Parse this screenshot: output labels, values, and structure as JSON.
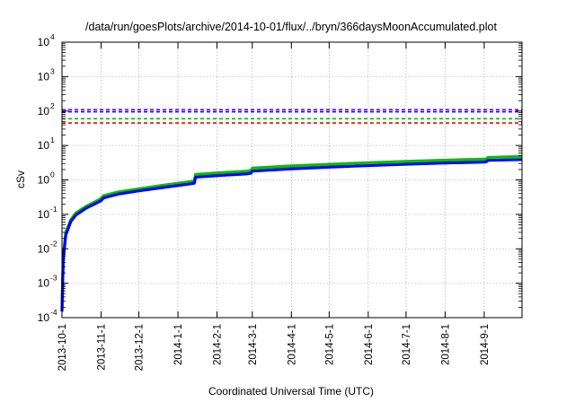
{
  "chart_data": {
    "type": "line",
    "title": "/data/run/goesPlots/archive/2014-10-01/flux/../bryn/366daysMoonAccumulated.plot",
    "xlabel": "Coordinated Universal Time (UTC)",
    "ylabel": "cSv",
    "x_ticks": [
      "2013-10-1",
      "2013-11-1",
      "2013-12-1",
      "2014-1-1",
      "2014-2-1",
      "2014-3-1",
      "2014-4-1",
      "2014-5-1",
      "2014-6-1",
      "2014-7-1",
      "2014-8-1",
      "2014-9-1"
    ],
    "x_range": [
      "2013-10-1",
      "2014-10-1"
    ],
    "y_scale": "log",
    "ylim": [
      0.0001,
      10000
    ],
    "y_ticks": [
      {
        "base": "10",
        "exp": "-4"
      },
      {
        "base": "10",
        "exp": "-3"
      },
      {
        "base": "10",
        "exp": "-2"
      },
      {
        "base": "10",
        "exp": "-1"
      },
      {
        "base": "10",
        "exp": "0"
      },
      {
        "base": "10",
        "exp": "1"
      },
      {
        "base": "10",
        "exp": "2"
      },
      {
        "base": "10",
        "exp": "3"
      },
      {
        "base": "10",
        "exp": "4"
      }
    ],
    "grid": true,
    "thresholds": [
      {
        "value": 110,
        "color": "#9400d3"
      },
      {
        "value": 95,
        "color": "#0000ff"
      },
      {
        "value": 60,
        "color": "#00c000"
      },
      {
        "value": 45,
        "color": "#ff0000"
      }
    ],
    "series": [
      {
        "color": "#00c000",
        "points": [
          [
            "2013-10-1",
            0.00018
          ],
          [
            "2013-10-2",
            0.006
          ],
          [
            "2013-10-4",
            0.03
          ],
          [
            "2013-10-8",
            0.07
          ],
          [
            "2013-10-12",
            0.11
          ],
          [
            "2013-10-20",
            0.17
          ],
          [
            "2013-10-28",
            0.24
          ],
          [
            "2013-11-1",
            0.29
          ],
          [
            "2013-11-3",
            0.35
          ],
          [
            "2013-11-15",
            0.45
          ],
          [
            "2013-12-1",
            0.55
          ],
          [
            "2013-12-20",
            0.7
          ],
          [
            "2014-1-10",
            0.88
          ],
          [
            "2014-1-14",
            0.93
          ],
          [
            "2014-1-15",
            1.45
          ],
          [
            "2014-2-1",
            1.6
          ],
          [
            "2014-2-25",
            1.8
          ],
          [
            "2014-2-28",
            1.9
          ],
          [
            "2014-3-1",
            2.2
          ],
          [
            "2014-4-1",
            2.55
          ],
          [
            "2014-5-1",
            2.85
          ],
          [
            "2014-6-1",
            3.15
          ],
          [
            "2014-7-1",
            3.45
          ],
          [
            "2014-8-1",
            3.75
          ],
          [
            "2014-9-1",
            4.0
          ],
          [
            "2014-9-3",
            4.15
          ],
          [
            "2014-9-4",
            4.5
          ],
          [
            "2014-10-1",
            4.8
          ]
        ]
      },
      {
        "color": "#0000ff",
        "points": [
          [
            "2013-10-1",
            0.00015
          ],
          [
            "2013-10-2",
            0.005
          ],
          [
            "2013-10-4",
            0.025
          ],
          [
            "2013-10-8",
            0.062
          ],
          [
            "2013-10-12",
            0.095
          ],
          [
            "2013-10-20",
            0.15
          ],
          [
            "2013-10-28",
            0.21
          ],
          [
            "2013-11-1",
            0.25
          ],
          [
            "2013-11-3",
            0.3
          ],
          [
            "2013-11-15",
            0.39
          ],
          [
            "2013-12-1",
            0.48
          ],
          [
            "2013-12-20",
            0.6
          ],
          [
            "2014-1-10",
            0.76
          ],
          [
            "2014-1-14",
            0.8
          ],
          [
            "2014-1-15",
            1.2
          ],
          [
            "2014-2-1",
            1.33
          ],
          [
            "2014-2-25",
            1.5
          ],
          [
            "2014-2-28",
            1.58
          ],
          [
            "2014-3-1",
            1.8
          ],
          [
            "2014-4-1",
            2.1
          ],
          [
            "2014-5-1",
            2.35
          ],
          [
            "2014-6-1",
            2.6
          ],
          [
            "2014-7-1",
            2.85
          ],
          [
            "2014-8-1",
            3.1
          ],
          [
            "2014-9-1",
            3.3
          ],
          [
            "2014-9-3",
            3.4
          ],
          [
            "2014-9-4",
            3.7
          ],
          [
            "2014-10-1",
            3.9
          ]
        ]
      }
    ]
  }
}
